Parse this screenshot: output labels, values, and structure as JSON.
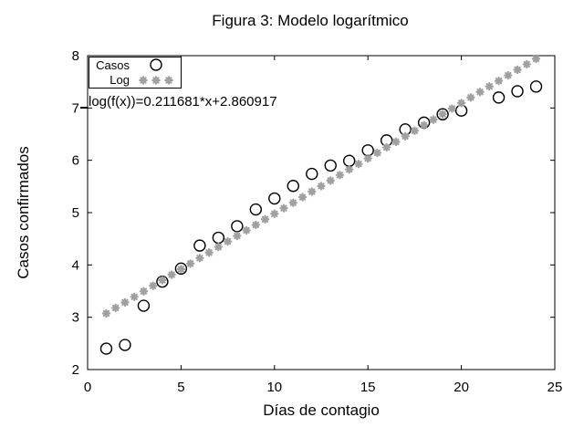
{
  "title": "Figura 3: Modelo logarítmico",
  "colors": {
    "background": "#ffffff",
    "foreground": "#000000",
    "points": "#000000",
    "fit": "#a0a0a0"
  },
  "annotation": {
    "text": "log(f(x))=0.211681*x+2.860917"
  },
  "legend": {
    "entries": [
      {
        "label": "Casos",
        "marker": "open-circle",
        "color": "#000000"
      },
      {
        "label": "Log",
        "marker": "asterisk",
        "color": "#a0a0a0"
      }
    ]
  },
  "chart_data": {
    "type": "scatter",
    "title": "Figura 3: Modelo logarítmico",
    "xlabel": "Días de contagio",
    "ylabel": "Casos confirmados",
    "xlim": [
      0,
      25
    ],
    "ylim": [
      2,
      8
    ],
    "xticks": [
      0,
      5,
      10,
      15,
      20,
      25
    ],
    "yticks": [
      2,
      3,
      4,
      5,
      6,
      7,
      8
    ],
    "grid": false,
    "legend_position": "top-left-inside",
    "annotation": "log(f(x))=0.211681*x+2.860917",
    "series": [
      {
        "name": "Casos",
        "type": "points",
        "marker": "open-circle",
        "color": "#000000",
        "points": [
          [
            1,
            2.4
          ],
          [
            2,
            2.47
          ],
          [
            3,
            3.22
          ],
          [
            4,
            3.68
          ],
          [
            5,
            3.93
          ],
          [
            6,
            4.37
          ],
          [
            7,
            4.52
          ],
          [
            8,
            4.74
          ],
          [
            9,
            5.06
          ],
          [
            10,
            5.27
          ],
          [
            11,
            5.51
          ],
          [
            12,
            5.74
          ],
          [
            13,
            5.9
          ],
          [
            14,
            5.99
          ],
          [
            15,
            6.19
          ],
          [
            16,
            6.38
          ],
          [
            17,
            6.59
          ],
          [
            18,
            6.72
          ],
          [
            19,
            6.88
          ],
          [
            20,
            6.95
          ],
          [
            22,
            7.2
          ],
          [
            23,
            7.32
          ],
          [
            24,
            7.41
          ]
        ]
      },
      {
        "name": "Log",
        "type": "points",
        "marker": "asterisk",
        "color": "#a0a0a0",
        "fit": {
          "slope": 0.211681,
          "intercept": 2.860917,
          "x_start": 1,
          "x_end": 24,
          "x_step": 0.5
        }
      }
    ]
  }
}
